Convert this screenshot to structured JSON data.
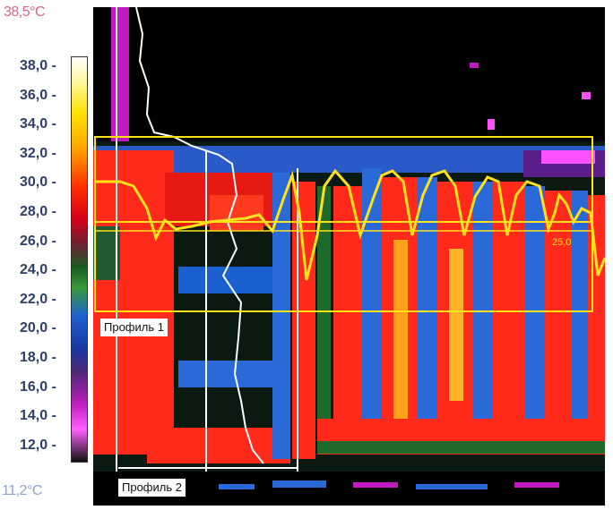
{
  "temperature_scale": {
    "max_label": "38,5°C",
    "min_label": "11,2°C",
    "ticks": [
      "38,0",
      "36,0",
      "34,0",
      "32,0",
      "30,0",
      "28,0",
      "26,0",
      "24,0",
      "22,0",
      "20,0",
      "18,0",
      "16,0",
      "14,0",
      "12,0"
    ]
  },
  "profiles": {
    "profile_1_label": "Профиль 1",
    "profile_2_label": "Профиль 2"
  },
  "measurement_box": {
    "inner_value": "25,0"
  },
  "colors": {
    "hot": "#ff2a1a",
    "warm": "#ffb020",
    "cool": "#2a6ad8",
    "mid": "#1f6a2a",
    "cold": "#000000",
    "profile_line": "#ffffff",
    "box_line": "#ffe21a"
  }
}
